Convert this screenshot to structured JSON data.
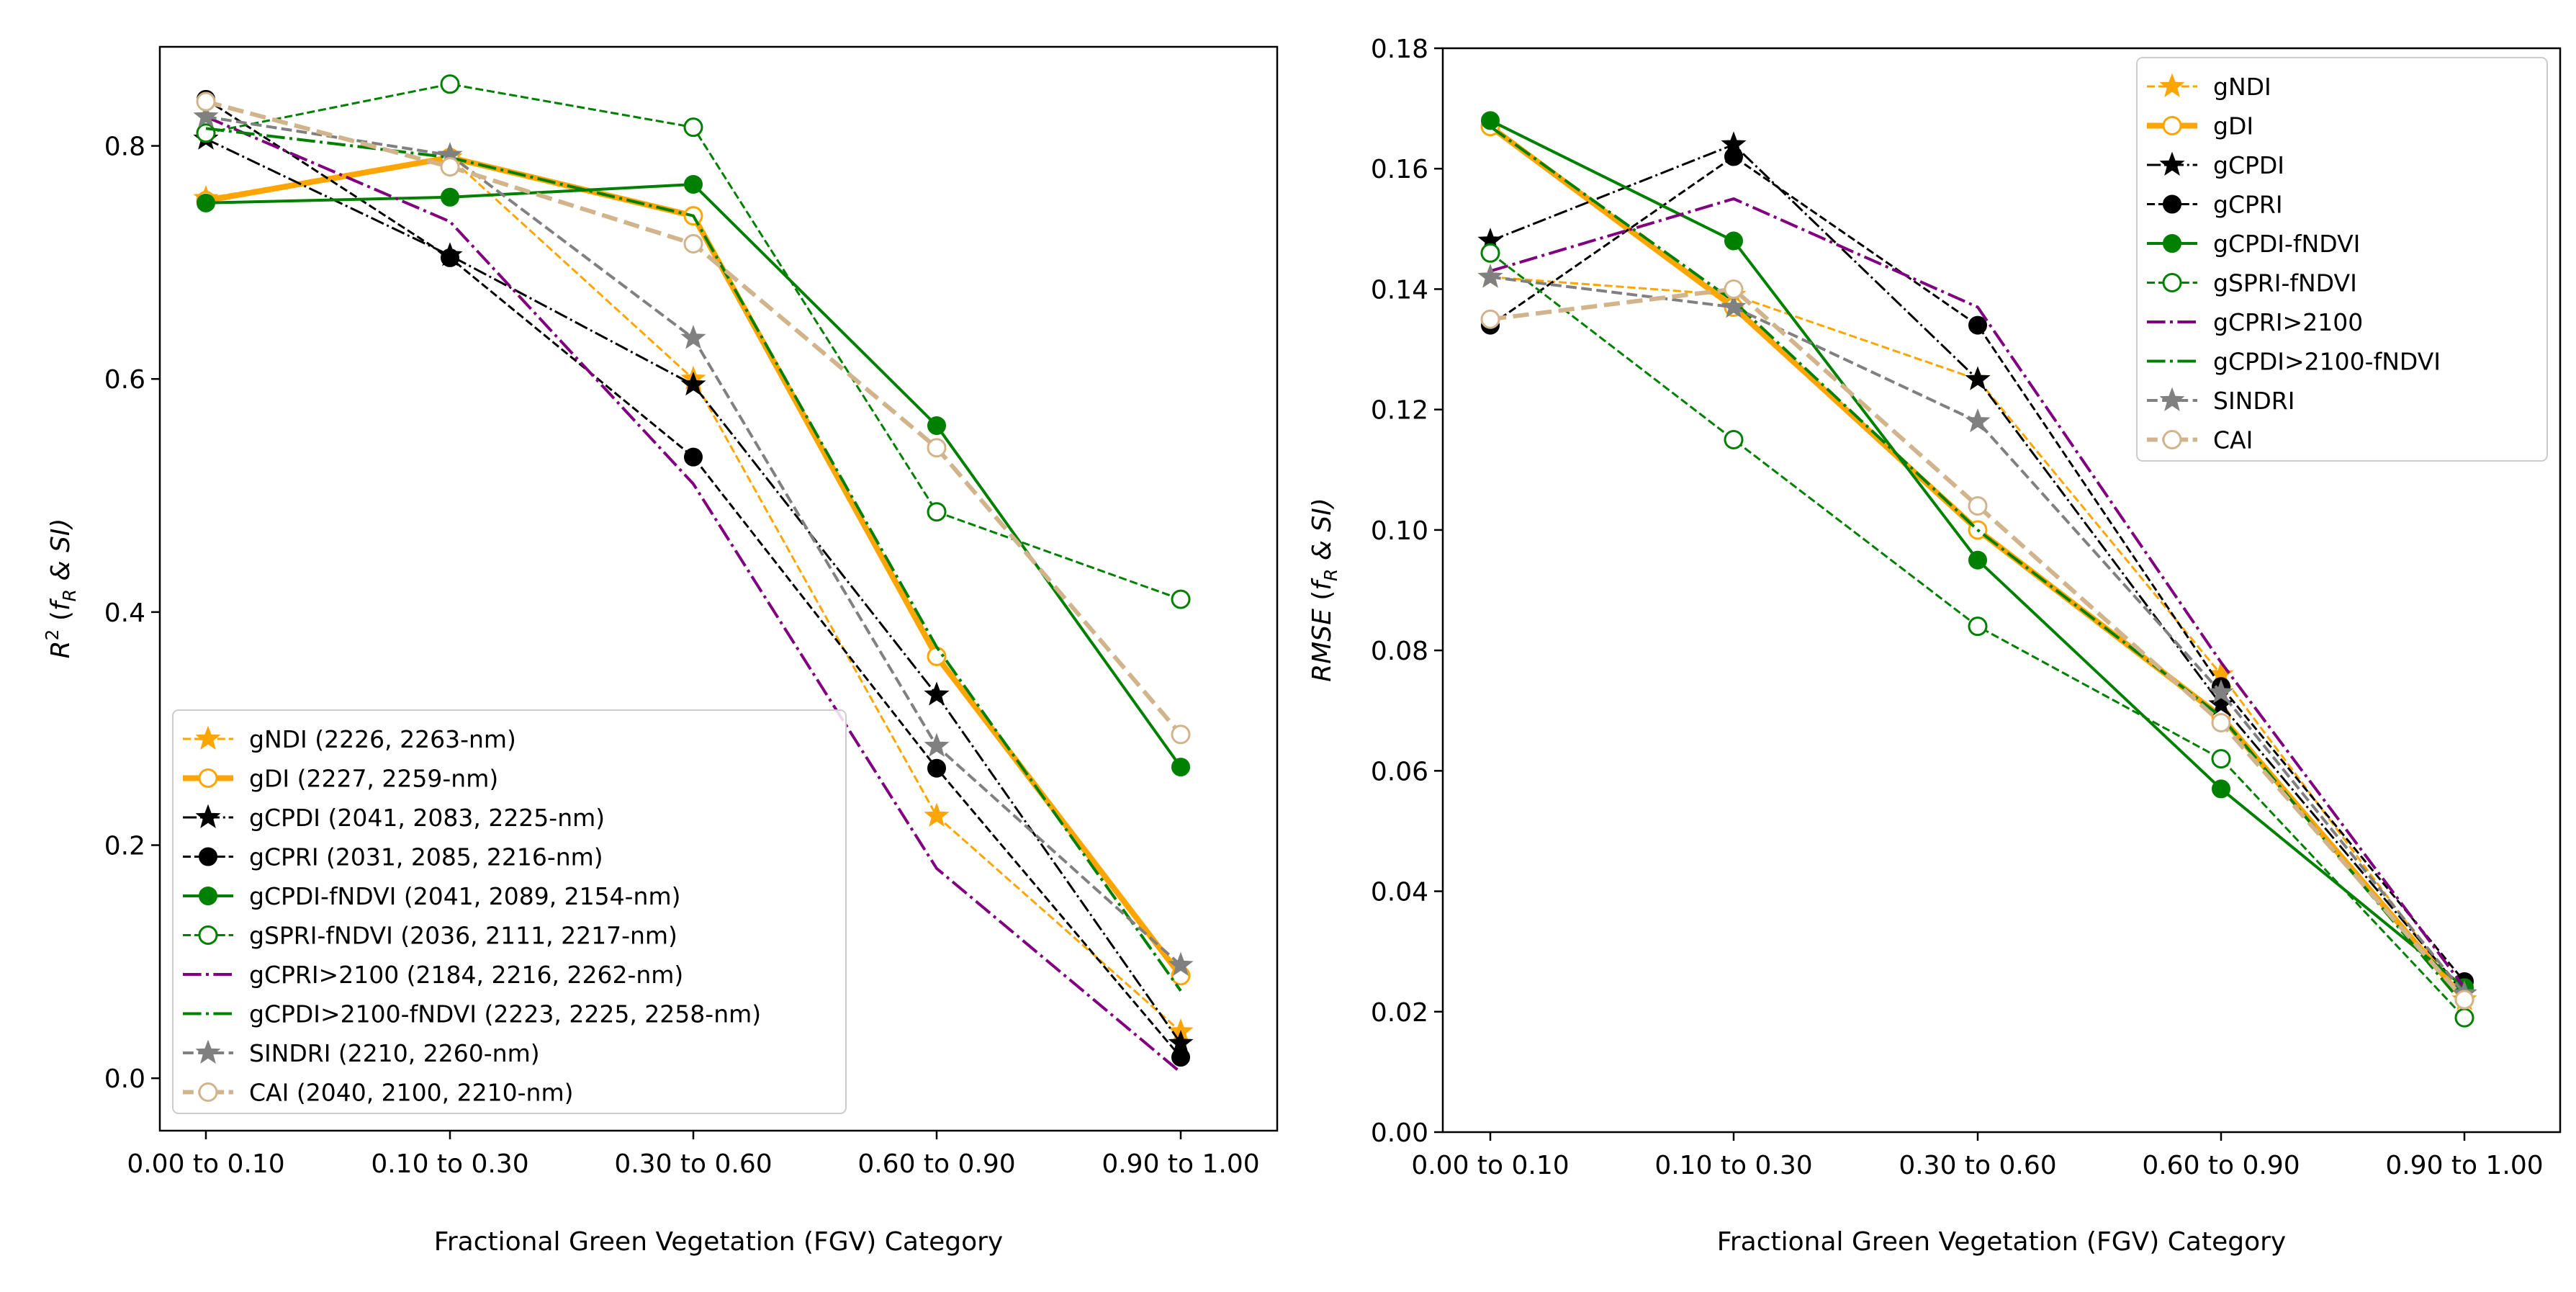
{
  "x_categories": [
    "0.00 to 0.10",
    "0.10 to 0.30",
    "0.30 to 0.60",
    "0.60 to 0.90",
    "0.90 to 1.00"
  ],
  "chart_data": [
    {
      "type": "line",
      "xlabel": "Fractional Green Vegetation (FGV) Category",
      "ylabel": "R",
      "ylabel_sup": "2",
      "ylabel_paren_open": " (",
      "ylabel_fr_f": "f",
      "ylabel_fr_sub": "R",
      "ylabel_rest": " & SI)",
      "ylim": [
        -0.045,
        0.885
      ],
      "y_ticks": [
        0.0,
        0.2,
        0.4,
        0.6,
        0.8
      ],
      "y_tick_labels": [
        "0.0",
        "0.2",
        "0.4",
        "0.6",
        "0.8"
      ],
      "grid": false,
      "legend_position": "lower-left",
      "series": [
        {
          "name": "gNDI (2226, 2263-nm)",
          "color": "#FFA500",
          "style": "dashed",
          "marker": "star",
          "width": 3,
          "values": [
            0.755,
            0.79,
            0.6,
            0.225,
            0.04
          ]
        },
        {
          "name": "gDI (2227, 2259-nm)",
          "color": "#FFA500",
          "style": "solid",
          "marker": "circle-open",
          "width": 8,
          "values": [
            0.753,
            0.79,
            0.74,
            0.362,
            0.088
          ]
        },
        {
          "name": "gCPDI (2041, 2083, 2225-nm)",
          "color": "#000000",
          "style": "dashdot",
          "marker": "star",
          "width": 3,
          "values": [
            0.806,
            0.706,
            0.595,
            0.329,
            0.03
          ]
        },
        {
          "name": "gCPRI (2031, 2085, 2216-nm)",
          "color": "#000000",
          "style": "dashed",
          "marker": "circle",
          "width": 3,
          "values": [
            0.84,
            0.704,
            0.533,
            0.266,
            0.018
          ]
        },
        {
          "name": "gCPDI-fNDVI (2041, 2089, 2154-nm)",
          "color": "#008000",
          "style": "solid",
          "marker": "circle",
          "width": 4,
          "values": [
            0.751,
            0.756,
            0.767,
            0.56,
            0.267
          ]
        },
        {
          "name": "gSPRI-fNDVI (2036, 2111, 2217-nm)",
          "color": "#008000",
          "style": "dashed",
          "marker": "circle-open",
          "width": 3,
          "values": [
            0.811,
            0.853,
            0.816,
            0.486,
            0.411
          ]
        },
        {
          "name": "gCPRI>2100 (2184, 2216, 2262-nm)",
          "color": "#800080",
          "style": "dashdot",
          "marker": "none",
          "width": 4,
          "values": [
            0.825,
            0.735,
            0.51,
            0.18,
            0.005
          ]
        },
        {
          "name": "gCPDI>2100-fNDVI (2223, 2225, 2258-nm)",
          "color": "#008000",
          "style": "dashdot",
          "marker": "none",
          "width": 4,
          "values": [
            0.815,
            0.79,
            0.74,
            0.37,
            0.075
          ]
        },
        {
          "name": "SINDRI (2210, 2260-nm)",
          "color": "#808080",
          "style": "dashed",
          "marker": "star",
          "width": 4,
          "values": [
            0.825,
            0.792,
            0.635,
            0.285,
            0.097
          ]
        },
        {
          "name": "CAI (2040, 2100, 2210-nm)",
          "color": "#D2B48C",
          "style": "dashed",
          "marker": "circle-open",
          "width": 6,
          "values": [
            0.838,
            0.782,
            0.716,
            0.541,
            0.295
          ]
        }
      ]
    },
    {
      "type": "line",
      "xlabel": "Fractional Green Vegetation (FGV) Category",
      "ylabel": "RMSE",
      "ylabel_sup": "",
      "ylabel_paren_open": " (",
      "ylabel_fr_f": "f",
      "ylabel_fr_sub": "R",
      "ylabel_rest": " & SI)",
      "ylim": [
        0.0,
        0.18
      ],
      "y_ticks": [
        0.0,
        0.02,
        0.04,
        0.06,
        0.08,
        0.1,
        0.12,
        0.14,
        0.16,
        0.18
      ],
      "y_tick_labels": [
        "0.00",
        "0.02",
        "0.04",
        "0.06",
        "0.08",
        "0.10",
        "0.12",
        "0.14",
        "0.16",
        "0.18"
      ],
      "grid": false,
      "legend_position": "upper-right",
      "series": [
        {
          "name": "gNDI",
          "color": "#FFA500",
          "style": "dashed",
          "marker": "star",
          "width": 3,
          "values": [
            0.142,
            0.139,
            0.125,
            0.076,
            0.022
          ]
        },
        {
          "name": "gDI",
          "color": "#FFA500",
          "style": "solid",
          "marker": "circle-open",
          "width": 8,
          "values": [
            0.167,
            0.137,
            0.1,
            0.069,
            0.022
          ]
        },
        {
          "name": "gCPDI",
          "color": "#000000",
          "style": "dashdot",
          "marker": "star",
          "width": 3,
          "values": [
            0.148,
            0.164,
            0.125,
            0.071,
            0.023
          ]
        },
        {
          "name": "gCPRI",
          "color": "#000000",
          "style": "dashed",
          "marker": "circle",
          "width": 3,
          "values": [
            0.134,
            0.162,
            0.134,
            0.074,
            0.025
          ]
        },
        {
          "name": "gCPDI-fNDVI",
          "color": "#008000",
          "style": "solid",
          "marker": "circle",
          "width": 4,
          "values": [
            0.168,
            0.148,
            0.095,
            0.057,
            0.024
          ]
        },
        {
          "name": "gSPRI-fNDVI",
          "color": "#008000",
          "style": "dashed",
          "marker": "circle-open",
          "width": 3,
          "values": [
            0.146,
            0.115,
            0.084,
            0.062,
            0.019
          ]
        },
        {
          "name": "gCPRI>2100",
          "color": "#800080",
          "style": "dashdot",
          "marker": "none",
          "width": 4,
          "values": [
            0.143,
            0.155,
            0.137,
            0.078,
            0.024
          ]
        },
        {
          "name": "gCPDI>2100-fNDVI",
          "color": "#008000",
          "style": "dashdot",
          "marker": "none",
          "width": 4,
          "values": [
            0.167,
            0.138,
            0.1,
            0.069,
            0.021
          ]
        },
        {
          "name": "SINDRI",
          "color": "#808080",
          "style": "dashed",
          "marker": "star",
          "width": 4,
          "values": [
            0.142,
            0.137,
            0.118,
            0.073,
            0.023
          ]
        },
        {
          "name": "CAI",
          "color": "#D2B48C",
          "style": "dashed",
          "marker": "circle-open",
          "width": 6,
          "values": [
            0.135,
            0.14,
            0.104,
            0.068,
            0.022
          ]
        }
      ]
    }
  ]
}
